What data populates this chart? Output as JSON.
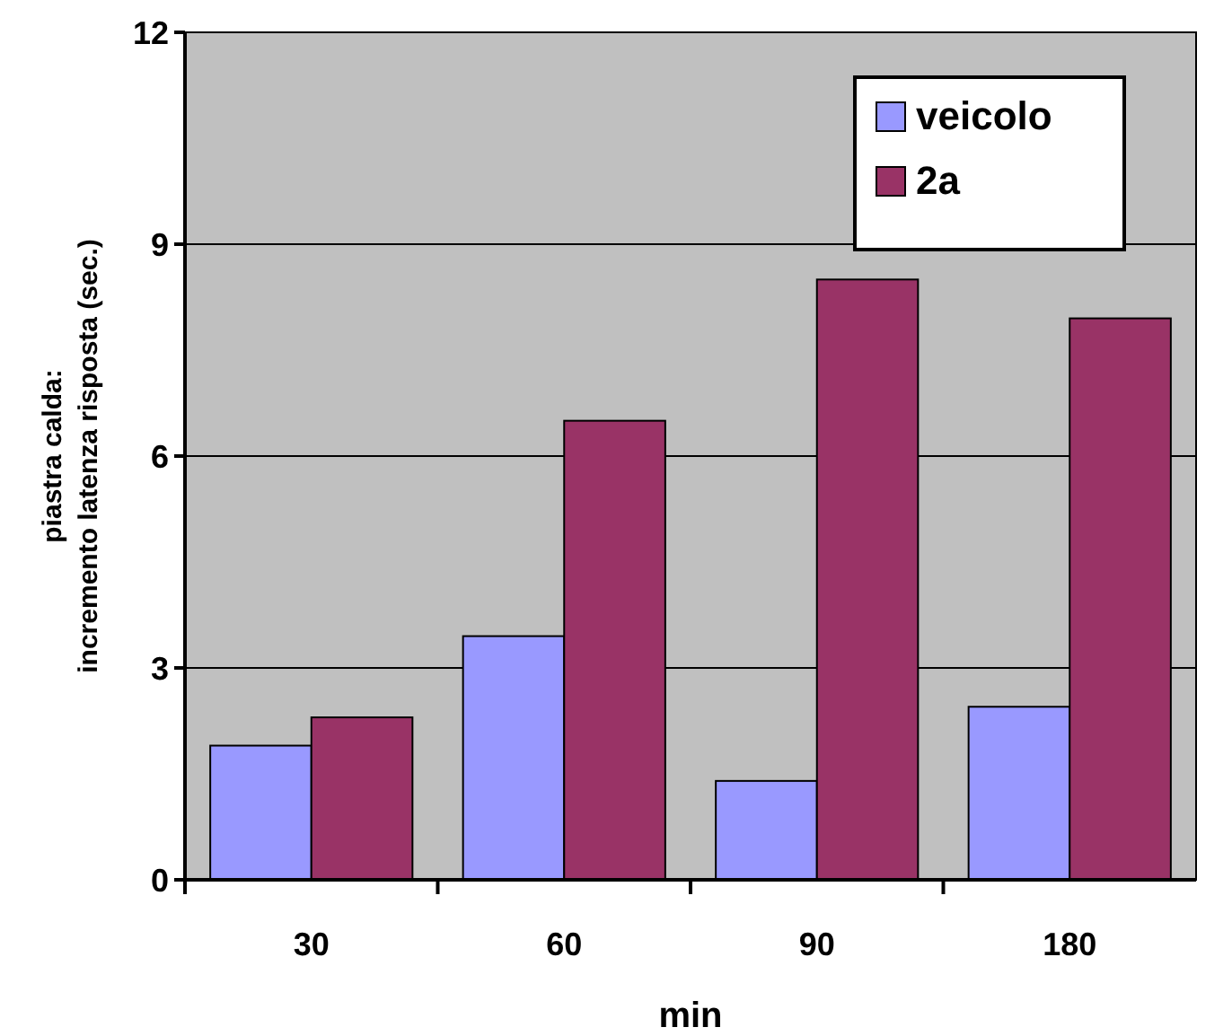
{
  "chart_data": {
    "type": "bar",
    "xlabel": "min",
    "ylabel": "piastra calda:\nincremento latenza risposta (sec.)",
    "categories": [
      "30",
      "60",
      "90",
      "180"
    ],
    "series": [
      {
        "name": "veicolo",
        "color": "#9999ff",
        "values": [
          1.9,
          3.45,
          1.4,
          2.45
        ]
      },
      {
        "name": "2a",
        "color": "#993366",
        "values": [
          2.3,
          6.5,
          8.5,
          7.95
        ]
      }
    ],
    "ylim": [
      0,
      12
    ],
    "yticks": [
      0,
      3,
      6,
      9,
      12
    ],
    "grid": "y",
    "legend": "top right"
  }
}
